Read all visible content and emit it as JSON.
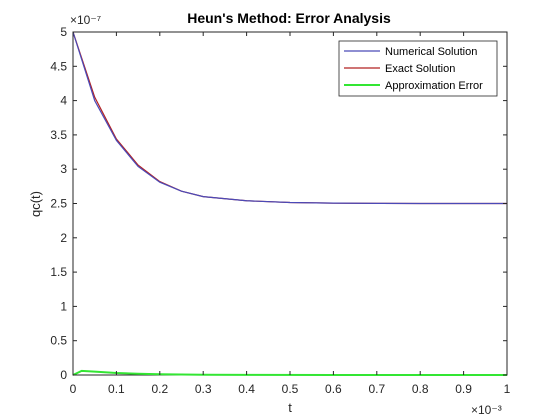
{
  "chart_data": {
    "type": "line",
    "title": "Heun's Method: Error Analysis",
    "xlabel": "t",
    "ylabel": "qc(t)",
    "x_exponent_label": "×10⁻³",
    "y_exponent_label": "×10⁻⁷",
    "xlim": [
      0,
      0.001
    ],
    "ylim": [
      0,
      5e-07
    ],
    "x_ticks": [
      0,
      0.0001,
      0.0002,
      0.0003,
      0.0004,
      0.0005,
      0.0006,
      0.0007,
      0.0008,
      0.0009,
      0.001
    ],
    "x_tick_labels": [
      "0",
      "0.1",
      "0.2",
      "0.3",
      "0.4",
      "0.5",
      "0.6",
      "0.7",
      "0.8",
      "0.9",
      "1"
    ],
    "y_ticks": [
      0,
      5e-08,
      1e-07,
      1.5e-07,
      2e-07,
      2.5e-07,
      3e-07,
      3.5e-07,
      4e-07,
      4.5e-07,
      5e-07
    ],
    "y_tick_labels": [
      "0",
      "0.5",
      "1",
      "1.5",
      "2",
      "2.5",
      "3",
      "3.5",
      "4",
      "4.5",
      "5"
    ],
    "grid": false,
    "legend_position": "top-right",
    "series": [
      {
        "name": "Numerical Solution",
        "color": "#4a4ab8",
        "x": [
          0,
          5e-05,
          0.0001,
          0.00015,
          0.0002,
          0.00025,
          0.0003,
          0.0004,
          0.0005,
          0.0006,
          0.0007,
          0.0008,
          0.0009,
          0.001
        ],
        "y": [
          5e-07,
          4e-07,
          3.42e-07,
          3.04e-07,
          2.81e-07,
          2.68e-07,
          2.6e-07,
          2.54e-07,
          2.515e-07,
          2.505e-07,
          2.502e-07,
          2.5e-07,
          2.5e-07,
          2.5e-07
        ]
      },
      {
        "name": "Exact Solution",
        "color": "#b22222",
        "x": [
          0,
          5e-05,
          0.0001,
          0.00015,
          0.0002,
          0.00025,
          0.0003,
          0.0004,
          0.0005,
          0.0006,
          0.0007,
          0.0008,
          0.0009,
          0.001
        ],
        "y": [
          5e-07,
          4.05e-07,
          3.44e-07,
          3.06e-07,
          2.82e-07,
          2.68e-07,
          2.6e-07,
          2.54e-07,
          2.515e-07,
          2.505e-07,
          2.502e-07,
          2.5e-07,
          2.5e-07,
          2.5e-07
        ]
      },
      {
        "name": "Approximation Error",
        "color": "#33e633",
        "x": [
          0,
          2e-05,
          5e-05,
          0.0001,
          0.00015,
          0.0002,
          0.0003,
          0.0004,
          0.0006,
          0.0008,
          0.001
        ],
        "y": [
          0,
          6e-09,
          5e-09,
          3e-09,
          1.8e-09,
          1e-09,
          3e-10,
          1e-10,
          0,
          0,
          0
        ]
      }
    ]
  }
}
